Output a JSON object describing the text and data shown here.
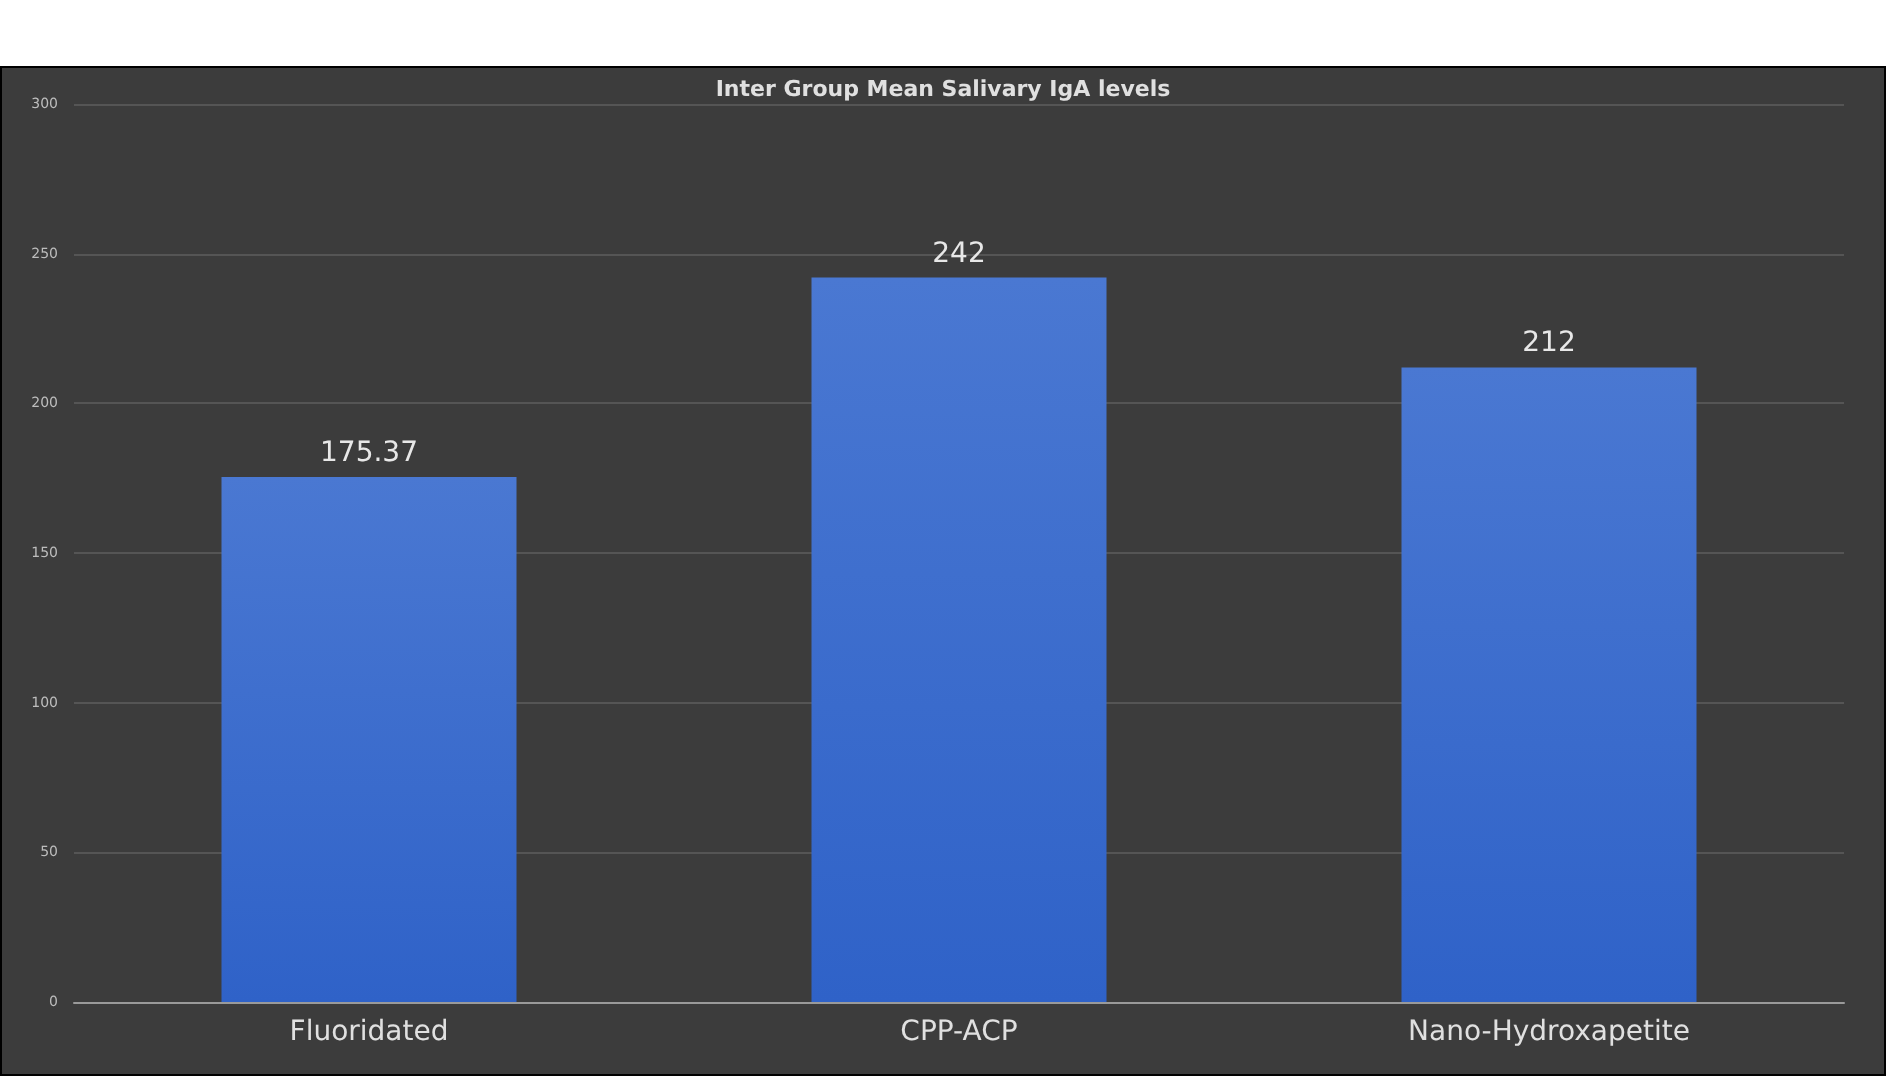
{
  "chart_data": {
    "type": "bar",
    "title": "Inter Group Mean Salivary IgA levels",
    "categories": [
      "Fluoridated",
      "CPP-ACP",
      "Nano-Hydroxapetite"
    ],
    "values": [
      175.37,
      242,
      212
    ],
    "color": "#4a78d2",
    "ylim": [
      0,
      300
    ],
    "yticks": [
      0,
      50,
      100,
      150,
      200,
      250,
      300
    ],
    "grid": "y",
    "data_labels": true
  }
}
